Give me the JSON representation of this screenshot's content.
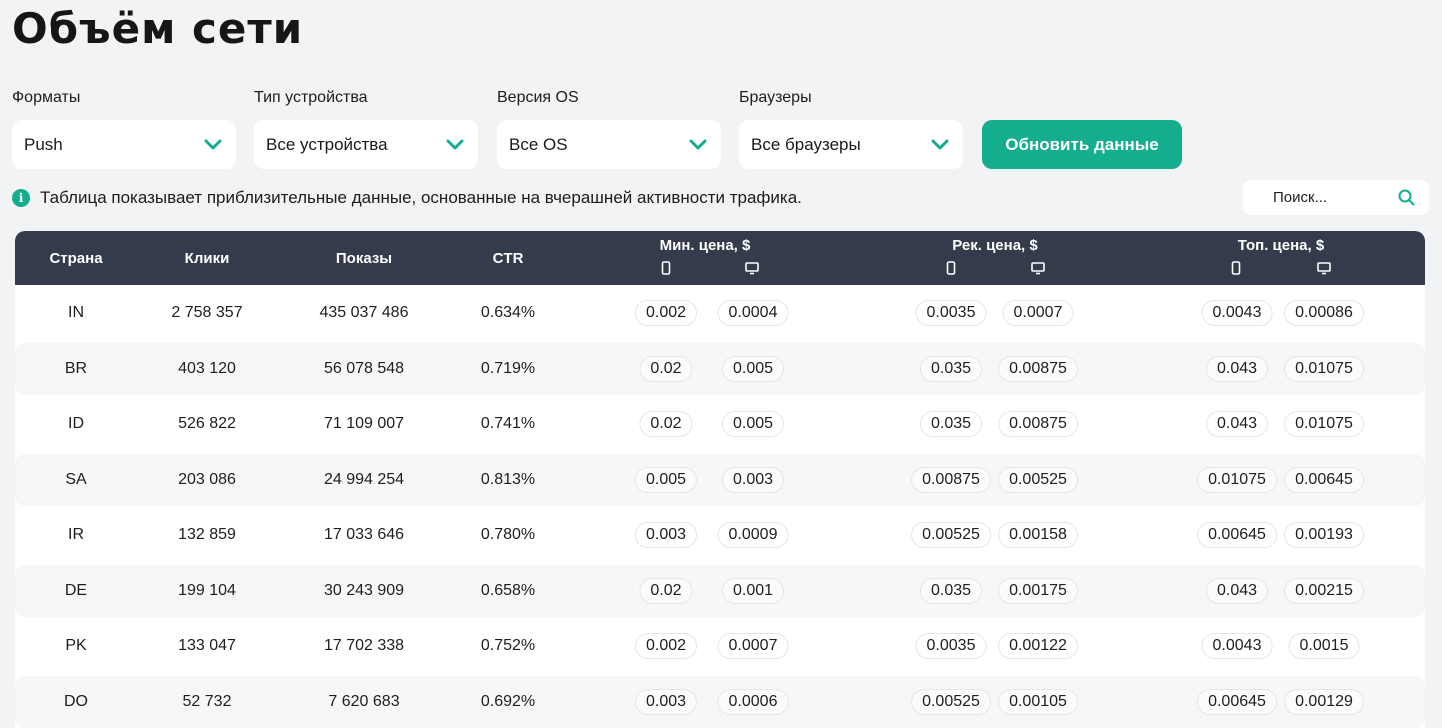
{
  "page": {
    "title": "Объём сети"
  },
  "filters": [
    {
      "label": "Форматы",
      "value": "Push"
    },
    {
      "label": "Тип устройства",
      "value": "Все устройства"
    },
    {
      "label": "Версия OS",
      "value": "Все OS"
    },
    {
      "label": "Браузеры",
      "value": "Все браузеры"
    }
  ],
  "refresh_label": "Обновить данные",
  "info_text": "Таблица показывает приблизительные данные, основанные на вчерашней активности трафика.",
  "search": {
    "placeholder": "Поиск..."
  },
  "colors": {
    "accent": "#14ad8e",
    "header_bg": "#343b4b",
    "page_bg": "#f2f3f5"
  },
  "icons": {
    "dropdown": "chevron-down-icon",
    "info": "info-icon",
    "search": "search-icon",
    "mobile": "mobile-icon",
    "desktop": "desktop-icon"
  },
  "table": {
    "headers": {
      "country": "Страна",
      "clicks": "Клики",
      "impressions": "Показы",
      "ctr": "CTR",
      "min_price": "Мин. цена, $",
      "rec_price": "Рек. цена, $",
      "top_price": "Топ. цена, $"
    },
    "rows": [
      {
        "country": "IN",
        "clicks": "2 758 357",
        "impressions": "435 037 486",
        "ctr": "0.634%",
        "min_mobile": "0.002",
        "min_desktop": "0.0004",
        "rec_mobile": "0.0035",
        "rec_desktop": "0.0007",
        "top_mobile": "0.0043",
        "top_desktop": "0.00086"
      },
      {
        "country": "BR",
        "clicks": "403 120",
        "impressions": "56 078 548",
        "ctr": "0.719%",
        "min_mobile": "0.02",
        "min_desktop": "0.005",
        "rec_mobile": "0.035",
        "rec_desktop": "0.00875",
        "top_mobile": "0.043",
        "top_desktop": "0.01075"
      },
      {
        "country": "ID",
        "clicks": "526 822",
        "impressions": "71 109 007",
        "ctr": "0.741%",
        "min_mobile": "0.02",
        "min_desktop": "0.005",
        "rec_mobile": "0.035",
        "rec_desktop": "0.00875",
        "top_mobile": "0.043",
        "top_desktop": "0.01075"
      },
      {
        "country": "SA",
        "clicks": "203 086",
        "impressions": "24 994 254",
        "ctr": "0.813%",
        "min_mobile": "0.005",
        "min_desktop": "0.003",
        "rec_mobile": "0.00875",
        "rec_desktop": "0.00525",
        "top_mobile": "0.01075",
        "top_desktop": "0.00645"
      },
      {
        "country": "IR",
        "clicks": "132 859",
        "impressions": "17 033 646",
        "ctr": "0.780%",
        "min_mobile": "0.003",
        "min_desktop": "0.0009",
        "rec_mobile": "0.00525",
        "rec_desktop": "0.00158",
        "top_mobile": "0.00645",
        "top_desktop": "0.00193"
      },
      {
        "country": "DE",
        "clicks": "199 104",
        "impressions": "30 243 909",
        "ctr": "0.658%",
        "min_mobile": "0.02",
        "min_desktop": "0.001",
        "rec_mobile": "0.035",
        "rec_desktop": "0.00175",
        "top_mobile": "0.043",
        "top_desktop": "0.00215"
      },
      {
        "country": "PK",
        "clicks": "133 047",
        "impressions": "17 702 338",
        "ctr": "0.752%",
        "min_mobile": "0.002",
        "min_desktop": "0.0007",
        "rec_mobile": "0.0035",
        "rec_desktop": "0.00122",
        "top_mobile": "0.0043",
        "top_desktop": "0.0015"
      },
      {
        "country": "DO",
        "clicks": "52 732",
        "impressions": "7 620 683",
        "ctr": "0.692%",
        "min_mobile": "0.003",
        "min_desktop": "0.0006",
        "rec_mobile": "0.00525",
        "rec_desktop": "0.00105",
        "top_mobile": "0.00645",
        "top_desktop": "0.00129"
      }
    ]
  }
}
